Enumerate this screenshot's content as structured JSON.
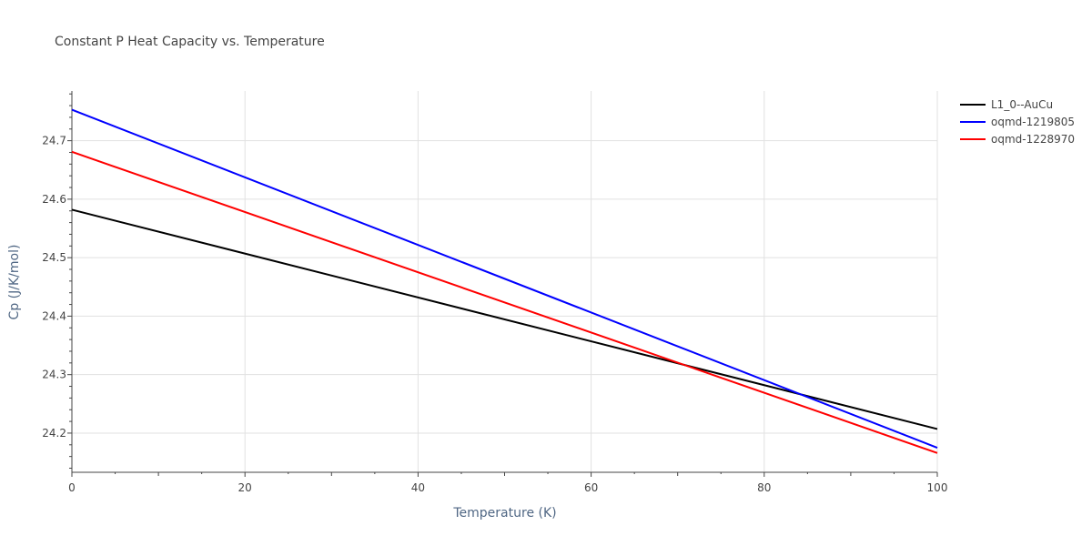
{
  "chart_data": {
    "type": "line",
    "title": "Constant P Heat Capacity vs. Temperature",
    "xlabel": "Temperature (K)",
    "ylabel": "Cp (J/K/mol)",
    "xlim": [
      0,
      100
    ],
    "ylim": [
      24.133,
      24.785
    ],
    "x_ticks": [
      0,
      20,
      40,
      60,
      80,
      100
    ],
    "x_tick_labels": [
      "0",
      "20",
      "40",
      "60",
      "80",
      "100"
    ],
    "y_ticks": [
      24.2,
      24.3,
      24.4,
      24.5,
      24.6,
      24.7
    ],
    "y_tick_labels": [
      "24.2",
      "24.3",
      "24.4",
      "24.5",
      "24.6",
      "24.7"
    ],
    "grid": true,
    "legend_position": "top-right",
    "series": [
      {
        "name": "L1_0--AuCu",
        "color": "#000000",
        "x": [
          0,
          100
        ],
        "values": [
          24.582,
          24.207
        ]
      },
      {
        "name": "oqmd-1219805",
        "color": "#0000ff",
        "x": [
          0,
          100
        ],
        "values": [
          24.753,
          24.175
        ]
      },
      {
        "name": "oqmd-1228970",
        "color": "#ff0000",
        "x": [
          0,
          100
        ],
        "values": [
          24.681,
          24.166
        ]
      }
    ]
  }
}
